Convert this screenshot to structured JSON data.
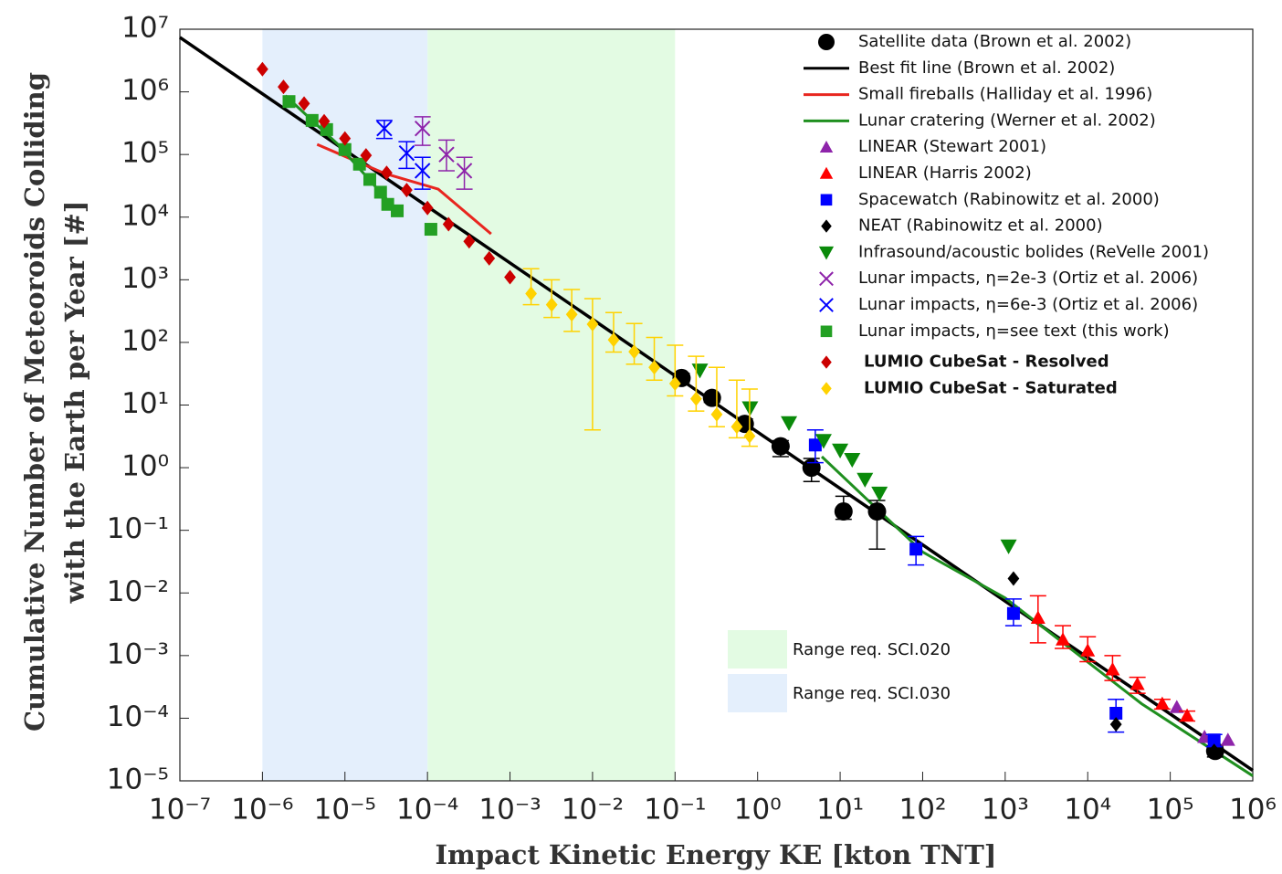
{
  "chart_data": {
    "type": "scatter",
    "xlabel": "Impact Kinetic Energy KE [kton TNT]",
    "ylabel": [
      "Cumulative Number of Meteoroids Colliding",
      "with the Earth per Year [#]"
    ],
    "xscale": "log",
    "yscale": "log",
    "xlim": [
      1e-07,
      1000000.0
    ],
    "ylim": [
      1e-05,
      10000000.0
    ],
    "xticks": [
      {
        "value": 1e-07,
        "label": "10⁻⁷"
      },
      {
        "value": 1e-06,
        "label": "10⁻⁶"
      },
      {
        "value": 1e-05,
        "label": "10⁻⁵"
      },
      {
        "value": 0.0001,
        "label": "10⁻⁴"
      },
      {
        "value": 0.001,
        "label": "10⁻³"
      },
      {
        "value": 0.01,
        "label": "10⁻²"
      },
      {
        "value": 0.1,
        "label": "10⁻¹"
      },
      {
        "value": 1,
        "label": "10⁰"
      },
      {
        "value": 10,
        "label": "10¹"
      },
      {
        "value": 100,
        "label": "10²"
      },
      {
        "value": 1000,
        "label": "10³"
      },
      {
        "value": 10000,
        "label": "10⁴"
      },
      {
        "value": 100000,
        "label": "10⁵"
      },
      {
        "value": 1000000,
        "label": "10⁶"
      }
    ],
    "yticks": [
      {
        "value": 1e-05,
        "label": "10⁻⁵"
      },
      {
        "value": 0.0001,
        "label": "10⁻⁴"
      },
      {
        "value": 0.001,
        "label": "10⁻³"
      },
      {
        "value": 0.01,
        "label": "10⁻²"
      },
      {
        "value": 0.1,
        "label": "10⁻¹"
      },
      {
        "value": 1,
        "label": "10⁰"
      },
      {
        "value": 10,
        "label": "10¹"
      },
      {
        "value": 100,
        "label": "10²"
      },
      {
        "value": 1000,
        "label": "10³"
      },
      {
        "value": 10000,
        "label": "10⁴"
      },
      {
        "value": 100000,
        "label": "10⁵"
      },
      {
        "value": 1000000,
        "label": "10⁶"
      },
      {
        "value": 10000000,
        "label": "10⁷"
      }
    ],
    "legend": "upper right",
    "ranges": [
      {
        "name": "Range req. SCI.020",
        "color": "#e3fbe3",
        "x": [
          0.0001,
          0.1
        ]
      },
      {
        "name": "Range req. SCI.030",
        "color": "#e4effc",
        "x": [
          1e-06,
          0.0001
        ]
      }
    ],
    "series": [
      {
        "name": "Satellite data (Brown et al. 2002)",
        "color": "#000000",
        "marker": "circle",
        "x": [
          0.12,
          0.28,
          0.7,
          1.9,
          4.5,
          11,
          28,
          350000
        ],
        "values": [
          27,
          13,
          5,
          2.2,
          1.0,
          0.2,
          0.2,
          3e-05
        ],
        "lower": [
          23,
          11,
          4,
          1.5,
          0.6,
          0.15,
          0.05,
          2.4e-05
        ],
        "upper": [
          32,
          15,
          6,
          2.7,
          1.4,
          0.35,
          0.3,
          3.6e-05
        ]
      },
      {
        "name": "Best fit line (Brown et al. 2002)",
        "color": "#000000",
        "marker": "line",
        "x": [
          1e-07,
          1000000.0
        ],
        "values": [
          7400000.0,
          1.47e-05
        ]
      },
      {
        "name": "Small fireballs (Halliday et al. 1996)",
        "color": "#e8261f",
        "marker": "line",
        "x": [
          4.6e-06,
          3e-05,
          0.000135,
          0.00059
        ],
        "values": [
          145000,
          50000,
          28000,
          5400
        ]
      },
      {
        "name": "Lunar cratering (Werner et al. 2002)",
        "color": "#1f8f1f",
        "marker": "line",
        "x": [
          1.9e-06,
          8e-06,
          3.8e-05,
          1,
          6,
          100,
          1000,
          45000,
          1000000
        ],
        "values": [
          870000,
          150000,
          15000,
          null,
          1.5,
          0.045,
          0.0083,
          0.00017,
          1.2e-05
        ]
      },
      {
        "name": "LINEAR (Stewart 2001)",
        "color": "#8e24aa",
        "marker": "triangle",
        "x": [
          120000,
          260000,
          500000
        ],
        "values": [
          0.00015,
          5e-05,
          4.5e-05
        ]
      },
      {
        "name": "LINEAR (Harris 2002)",
        "color": "#ff0000",
        "marker": "triangle",
        "x": [
          2500,
          5000,
          10000,
          20000,
          40000,
          80000,
          160000
        ],
        "values": [
          0.004,
          0.0018,
          0.0012,
          0.0006,
          0.00035,
          0.00017,
          0.00011
        ],
        "lower": [
          0.0016,
          0.0013,
          0.0008,
          0.0004,
          0.00025,
          0.00014,
          9e-05
        ],
        "upper": [
          0.009,
          0.003,
          0.002,
          0.001,
          0.00045,
          0.0002,
          0.00013
        ]
      },
      {
        "name": "Spacewatch (Rabinowitz et al. 2000)",
        "color": "#0000ff",
        "marker": "square",
        "x": [
          5,
          83,
          1260,
          22000,
          340000
        ],
        "values": [
          2.3,
          0.05,
          0.0047,
          0.00012,
          4.5e-05
        ],
        "lower": [
          1.2,
          0.028,
          0.003,
          6e-05,
          3.5e-05
        ],
        "upper": [
          4,
          0.08,
          0.008,
          0.0002,
          5.5e-05
        ]
      },
      {
        "name": "NEAT (Rabinowitz et al. 2000)",
        "color": "#000000",
        "marker": "diamond",
        "x": [
          1260,
          22000,
          340000
        ],
        "values": [
          0.017,
          8e-05,
          3e-05
        ]
      },
      {
        "name": "Infrasound/acoustic bolides (ReVelle 2001)",
        "color": "#0a8a0a",
        "marker": "triangle-down",
        "x": [
          0.2,
          0.81,
          2.4,
          6.3,
          10,
          14,
          20,
          30,
          1100
        ],
        "values": [
          36,
          9,
          5.2,
          2.7,
          1.9,
          1.35,
          0.65,
          0.39,
          0.056
        ]
      },
      {
        "name": "Lunar impacts, η=2e-3 (Ortiz et al. 2006)",
        "color": "#8e24aa",
        "marker": "x",
        "x": [
          8.7e-05,
          0.00017,
          0.00028
        ],
        "values": [
          260000,
          100000,
          55000
        ],
        "lower": [
          140000,
          55000,
          28000
        ],
        "upper": [
          400000,
          170000,
          90000
        ]
      },
      {
        "name": "Lunar impacts, η=6e-3 (Ortiz et al. 2006)",
        "color": "#0000ff",
        "marker": "x",
        "x": [
          3e-05,
          5.6e-05,
          8.7e-05
        ],
        "values": [
          260000,
          105000,
          55000
        ],
        "lower": [
          180000,
          60000,
          28000
        ],
        "upper": [
          350000,
          160000,
          90000
        ]
      },
      {
        "name": "Lunar impacts, η=see text (this work)",
        "color": "#23a023",
        "marker": "square",
        "x": [
          2.1e-06,
          4e-06,
          6e-06,
          1e-05,
          1.5e-05,
          2e-05,
          2.7e-05,
          3.3e-05,
          4.3e-05,
          0.00011
        ],
        "values": [
          700000,
          350000,
          250000,
          120000,
          70000,
          40000,
          25000,
          16000,
          12600,
          6400
        ]
      },
      {
        "name": "LUMIO CubeSat - Resolved",
        "color": "#cc0000",
        "marker": "diamond",
        "legend_bold": true,
        "x": [
          1e-06,
          1.8e-06,
          3.2e-06,
          5.6e-06,
          1e-05,
          1.8e-05,
          3.2e-05,
          5.6e-05,
          0.0001,
          0.00018,
          0.00032,
          0.00056,
          0.001
        ],
        "values": [
          2300000,
          1200000,
          650000,
          340000,
          180000,
          97000,
          51000,
          27000,
          14000,
          7700,
          4100,
          2200,
          1100
        ]
      },
      {
        "name": "LUMIO CubeSat - Saturated",
        "color": "#ffd200",
        "marker": "diamond",
        "legend_bold": true,
        "x": [
          0.0018,
          0.0032,
          0.0056,
          0.01,
          0.018,
          0.032,
          0.056,
          0.1,
          0.18,
          0.32,
          0.56,
          0.8
        ],
        "values": [
          600,
          400,
          280,
          195,
          110,
          71,
          40,
          22,
          12.6,
          7.1,
          4.5,
          3.2
        ],
        "lower": [
          400,
          250,
          150,
          4,
          70,
          45,
          25,
          14,
          8,
          4.5,
          3,
          2.2
        ],
        "upper": [
          1500,
          1000,
          700,
          500,
          300,
          200,
          120,
          90,
          60,
          40,
          25,
          18
        ]
      }
    ]
  }
}
